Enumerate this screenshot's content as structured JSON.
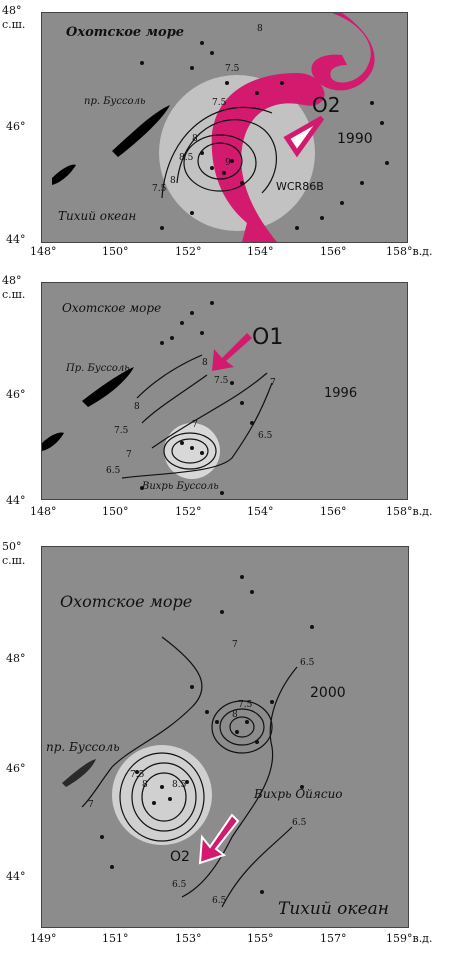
{
  "panels": [
    {
      "year": "1990",
      "axis": {
        "lat_top": "48°",
        "lat_top_unit": "с.ш.",
        "lat_mid": "46°",
        "lat_bottom": "44°",
        "lon_ticks": [
          "148°",
          "150°",
          "152°",
          "154°",
          "156°",
          "158°в.д."
        ]
      },
      "labels": {
        "sea": "Охотское море",
        "strait": "пр. Буссоль",
        "ocean": "Тихий океан",
        "eddy": "O2",
        "ring": "WCR86B"
      },
      "contours": [
        "8",
        "7.5",
        "7.5",
        "8",
        "8.5",
        "9",
        "8",
        "7.5"
      ]
    },
    {
      "year": "1996",
      "axis": {
        "lat_top": "48°",
        "lat_top_unit": "с.ш.",
        "lat_mid": "46°",
        "lat_bottom": "44°",
        "lon_ticks": [
          "148°",
          "150°",
          "152°",
          "154°",
          "156°",
          "158°в.д."
        ]
      },
      "labels": {
        "sea": "Охотское море",
        "strait": "Пр. Буссоль",
        "eddy": "O1",
        "vortex": "Вихрь Буссоль"
      },
      "contours": [
        "8",
        "7.5",
        "8",
        "7.5",
        "7",
        "7",
        "6.5",
        "6.5",
        "7"
      ]
    },
    {
      "year": "2000",
      "axis": {
        "lat_top": "50°",
        "lat_top_unit": "с.ш.",
        "lat_ticks": [
          "48°",
          "46°",
          "44°"
        ],
        "lon_ticks": [
          "149°",
          "151°",
          "153°",
          "155°",
          "157°",
          "159°в.д."
        ]
      },
      "labels": {
        "sea": "Охотское море",
        "strait": "пр. Буссоль",
        "ocean": "Тихий океан",
        "vortex": "Вихрь Ойясио",
        "eddy": "O2"
      },
      "contours": [
        "7",
        "6.5",
        "7.5",
        "8",
        "7.5",
        "8",
        "8.5",
        "7",
        "6.5",
        "6.5",
        "6.5"
      ]
    }
  ],
  "colors": {
    "map_bg": "#8c8c8c",
    "current_magenta": "#d41a6e",
    "eddy_halo": "#c8c8c8",
    "land": "#000000"
  }
}
